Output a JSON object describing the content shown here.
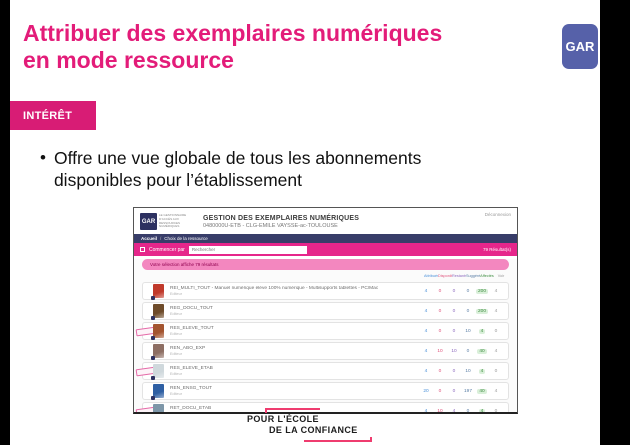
{
  "slide": {
    "title_line1": "Attribuer des exemplaires numériques",
    "title_line2": "en mode ressource",
    "badge": "GAR",
    "badge_color": "#5661a9",
    "section_label": "INTÉRÊT",
    "section_color": "#d81c75",
    "title_color": "#e31c79",
    "bullet": "Offre une vue globale de tous les abonnements disponibles pour l’établissement",
    "footer_logo_line1": "POUR L'ÉCOLE",
    "footer_logo_line2": "DE LA CONFIANCE"
  },
  "app": {
    "logo": "GAR",
    "logo_caption": "Le gestionnaire d'accès aux ressources numériques",
    "title": "GESTION DES EXEMPLAIRES NUMÉRIQUES",
    "subtitle": "0480000U-ETB - CLG-EMILE VAYSSE-ac-TOULOUSE",
    "logout": "Déconnexion",
    "breadcrumb": [
      "Accueil",
      "Choix de la ressource"
    ],
    "search": {
      "label": "Commencer par",
      "placeholder": "Rechercher"
    },
    "results_count": "79 Résultat(s)",
    "selection_banner": "Votre sélection affiche 79 résultats",
    "accent_pink": "#e6268b",
    "columns": [
      {
        "label": "Attribués",
        "color": "#4a90d9"
      },
      {
        "label": "Disponibles",
        "color": "#e0527c"
      },
      {
        "label": "Restants",
        "color": "#8e6bbf"
      },
      {
        "label": "Suggérés",
        "color": "#5b7fa6"
      },
      {
        "label": "Affectés",
        "color": "#3e8e41"
      },
      {
        "label": "Voir",
        "color": "#999999"
      }
    ],
    "rows": [
      {
        "title": "REI_MULTI_TOUT - Manuel numérique élève 100% numérique - Multisupports tablettes - PC/Mac",
        "subtitle": "Editeur",
        "stamp": false,
        "cover": "#c0392b",
        "values": [
          "4",
          "0",
          "0",
          "0",
          "200",
          "4"
        ]
      },
      {
        "title": "REG_DOCU_TOUT",
        "subtitle": "Editeur",
        "stamp": false,
        "cover": "#6e4b2a",
        "values": [
          "4",
          "0",
          "0",
          "0",
          "200",
          "4"
        ]
      },
      {
        "title": "RES_ELEVE_TOUT",
        "subtitle": "Editeur",
        "stamp": true,
        "cover": "#a3542f",
        "values": [
          "4",
          "0",
          "0",
          "10",
          "4",
          "0"
        ]
      },
      {
        "title": "REN_ABO_EXP",
        "subtitle": "Editeur",
        "stamp": false,
        "cover": "#8d6e63",
        "values": [
          "4",
          "10",
          "10",
          "0",
          "40",
          "4"
        ]
      },
      {
        "title": "RES_ELEVE_ETAB",
        "subtitle": "Editeur",
        "stamp": true,
        "cover": "#cfd8dc",
        "values": [
          "4",
          "0",
          "0",
          "10",
          "4",
          "0"
        ]
      },
      {
        "title": "REN_ENSG_TOUT",
        "subtitle": "Editeur",
        "stamp": false,
        "cover": "#2e5fa3",
        "values": [
          "20",
          "0",
          "0",
          "197",
          "40",
          "4"
        ]
      },
      {
        "title": "RET_DOCU_ETAB",
        "subtitle": "Editeur",
        "stamp": true,
        "cover": "#7d96a8",
        "values": [
          "4",
          "10",
          "4",
          "0",
          "4",
          "0"
        ]
      }
    ]
  }
}
